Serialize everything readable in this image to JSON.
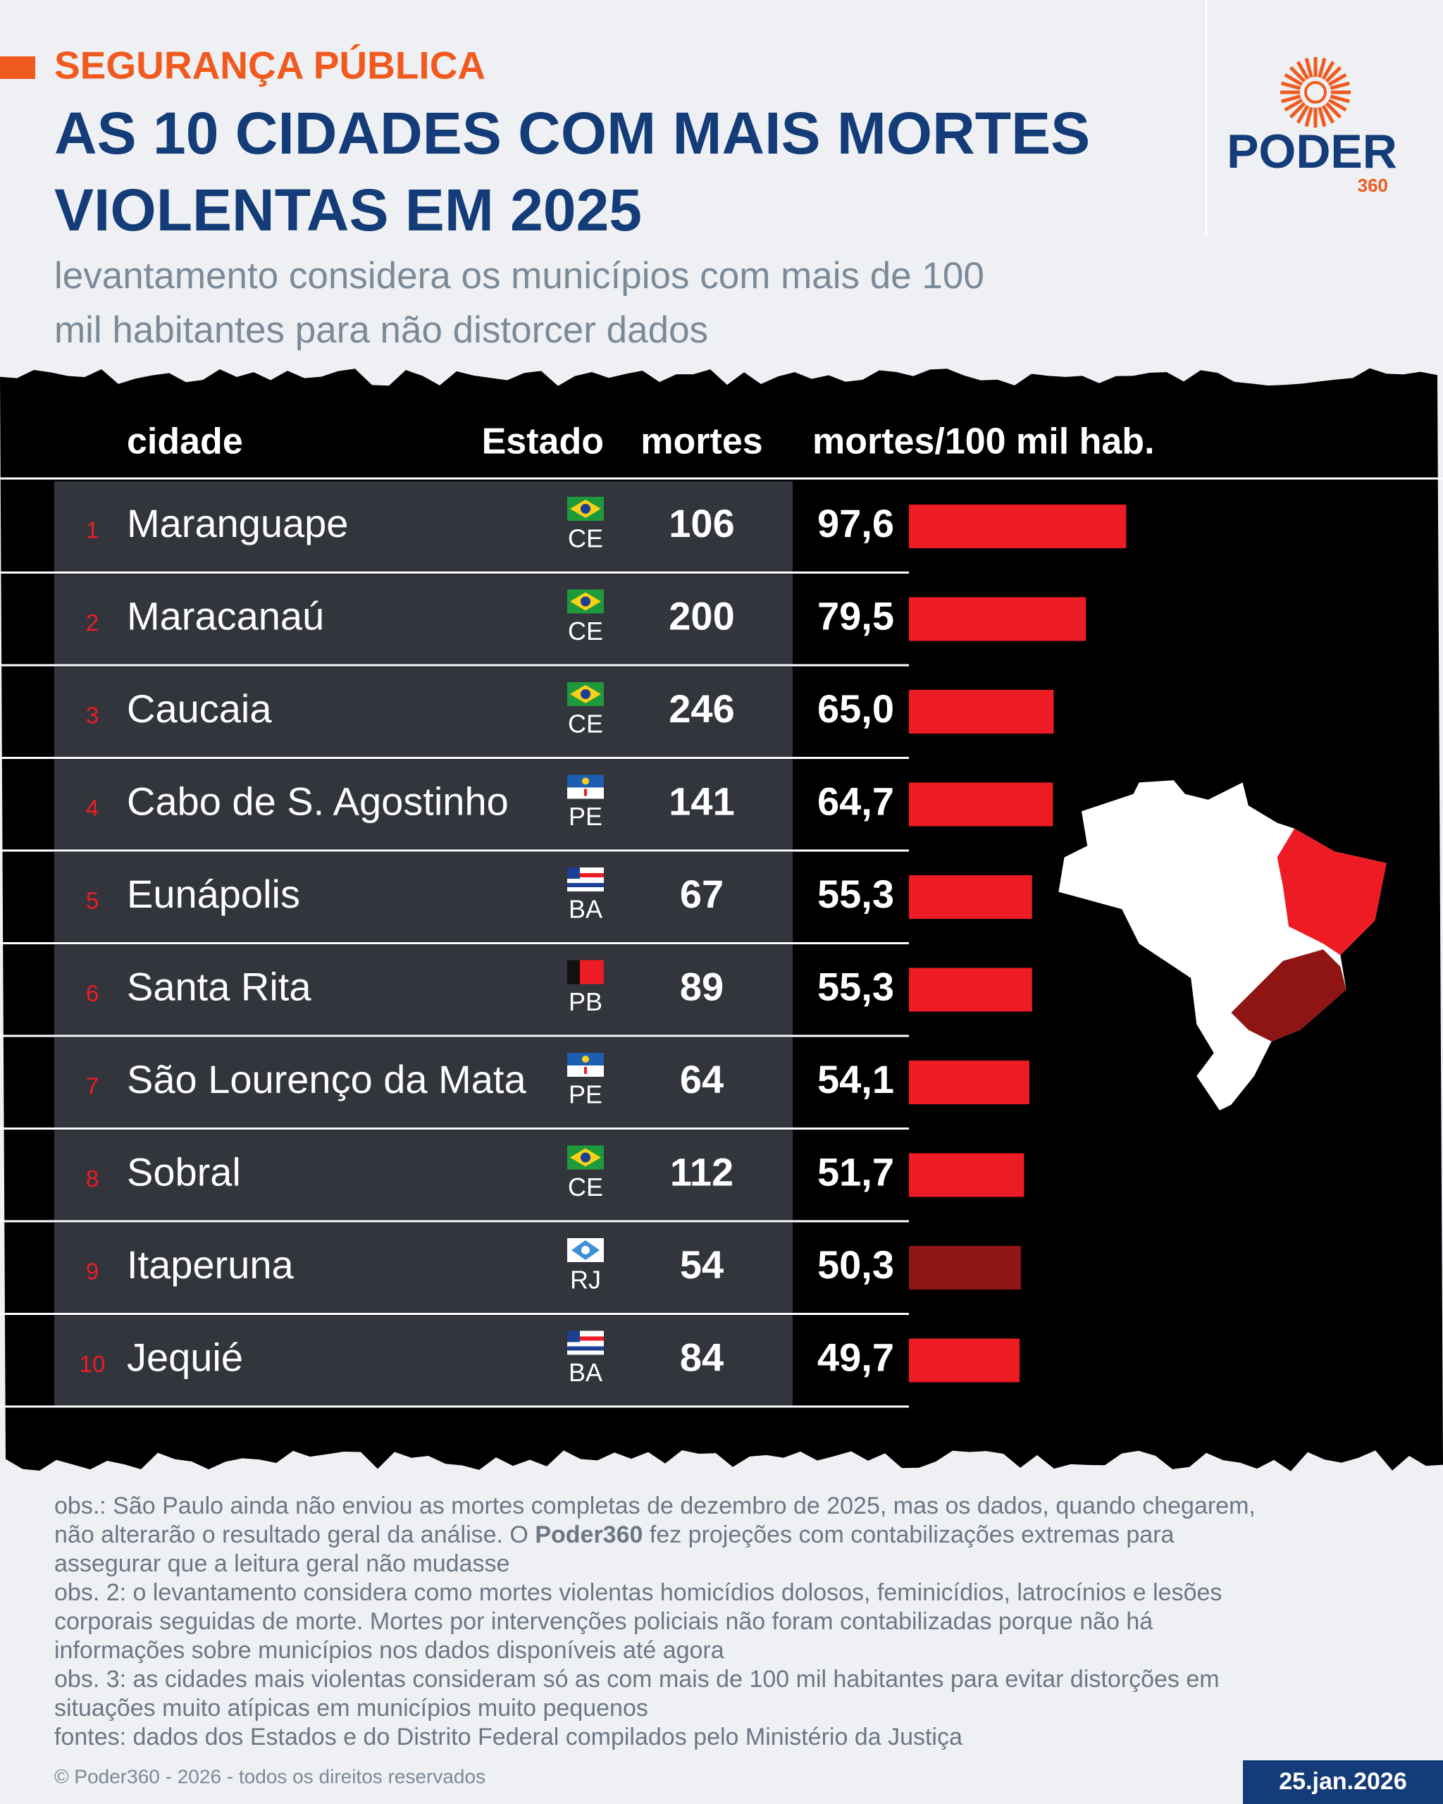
{
  "header": {
    "kicker": "SEGURANÇA PÚBLICA",
    "title_lines": [
      "AS 10 CIDADES COM MAIS MORTES",
      "VIOLENTAS EM 2025"
    ],
    "subtitle_lines": [
      "levantamento considera os municípios com mais de 100",
      "mil habitantes para não distorcer dados"
    ]
  },
  "logo": {
    "name": "PODER",
    "number": "360"
  },
  "chart_data": {
    "type": "bar",
    "orientation": "horizontal",
    "column_headers": [
      "cidade",
      "Estado",
      "mortes",
      "mortes/100 mil hab."
    ],
    "ranks": [
      "1",
      "2",
      "3",
      "4",
      "5",
      "6",
      "7",
      "8",
      "9",
      "10"
    ],
    "categories": [
      "Maranguape",
      "Maracanaú",
      "Caucaia",
      "Cabo de S. Agostinho",
      "Eunápolis",
      "Santa Rita",
      "São Lourenço da Mata",
      "Sobral",
      "Itaperuna",
      "Jequié"
    ],
    "states": [
      "CE",
      "CE",
      "CE",
      "PE",
      "BA",
      "PB",
      "PE",
      "CE",
      "RJ",
      "BA"
    ],
    "deaths": [
      106,
      200,
      246,
      141,
      67,
      89,
      64,
      112,
      54,
      84
    ],
    "values": [
      97.6,
      79.5,
      65.0,
      64.7,
      55.3,
      55.3,
      54.1,
      51.7,
      50.3,
      49.7
    ],
    "value_labels": [
      "97,6",
      "79,5",
      "65,0",
      "64,7",
      "55,3",
      "55,3",
      "54,1",
      "51,7",
      "50,3",
      "49,7"
    ],
    "colors": [
      "#ed1c24",
      "#ed1c24",
      "#ed1c24",
      "#ed1c24",
      "#ed1c24",
      "#ed1c24",
      "#ed1c24",
      "#ed1c24",
      "#8f1515",
      "#ed1c24"
    ]
  },
  "notes": [
    [
      [
        "obs.: São Paulo ainda não enviou as mortes completas de dezembro de 2025, mas os dados, quando chegarem,"
      ],
      [
        "não alterarão o resultado geral da análise. O ",
        "Poder360",
        " fez projeções com contabilizações extremas para"
      ],
      [
        "assegurar que a leitura geral não mudasse"
      ]
    ],
    [
      [
        "obs. 2: o levantamento considera como mortes violentas homicídios dolosos, feminicídios, latrocínios e lesões"
      ],
      [
        "corporais seguidas de morte. Mortes por intervenções policiais não foram contabilizadas porque não há"
      ],
      [
        "informações sobre municípios nos dados disponíveis até agora"
      ]
    ],
    [
      [
        "obs. 3: as cidades mais violentas consideram só as com mais de 100 mil habitantes para evitar distorções em"
      ],
      [
        "situações muito atípicas em municípios muito pequenos"
      ]
    ],
    [
      [
        "fontes: dados dos Estados e do Distrito Federal compilados pelo Ministério da Justiça"
      ]
    ]
  ],
  "footer": {
    "copyright": "© Poder360 - 2026 - todos os direitos reservados",
    "date": "25.jan.2026"
  }
}
